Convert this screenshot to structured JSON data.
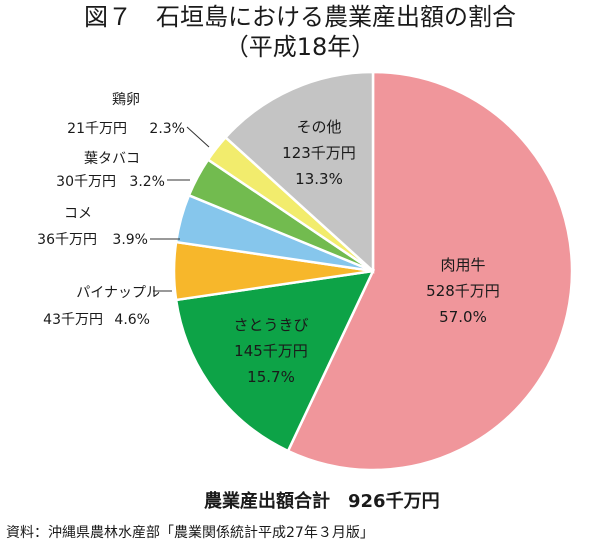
{
  "title": "図７　石垣島における農業産出額の割合",
  "subtitle": "（平成18年）",
  "total_label": "農業産出額合計　926千万円",
  "source": "資料：沖縄県農林水産部「農業関係統計平成27年３月版」",
  "chart_data": {
    "type": "pie",
    "unit": "千万円",
    "start": "12 o'clock, clockwise",
    "slices": [
      {
        "name": "肉用牛",
        "value": 528,
        "value_label": "528千万円",
        "percent": 57.0,
        "percent_label": "57.0%",
        "color": "#f0969b",
        "label_position": "inside"
      },
      {
        "name": "さとうきび",
        "value": 145,
        "value_label": "145千万円",
        "percent": 15.7,
        "percent_label": "15.7%",
        "color": "#0da347",
        "label_position": "inside"
      },
      {
        "name": "パイナップル",
        "value": 43,
        "value_label": "43千万円",
        "percent": 4.6,
        "percent_label": "4.6%",
        "color": "#f7b72b",
        "label_position": "outside"
      },
      {
        "name": "コメ",
        "value": 36,
        "value_label": "36千万円",
        "percent": 3.9,
        "percent_label": "3.9%",
        "color": "#86c6ec",
        "label_position": "outside"
      },
      {
        "name": "葉タバコ",
        "value": 30,
        "value_label": "30千万円",
        "percent": 3.2,
        "percent_label": "3.2%",
        "color": "#72bb4f",
        "label_position": "outside"
      },
      {
        "name": "鶏卵",
        "value": 21,
        "value_label": "21千万円",
        "percent": 2.3,
        "percent_label": "2.3%",
        "color": "#f2ec6d",
        "label_position": "outside"
      },
      {
        "name": "その他",
        "value": 123,
        "value_label": "123千万円",
        "percent": 13.3,
        "percent_label": "13.3%",
        "color": "#c4c4c4",
        "label_position": "inside"
      }
    ]
  }
}
